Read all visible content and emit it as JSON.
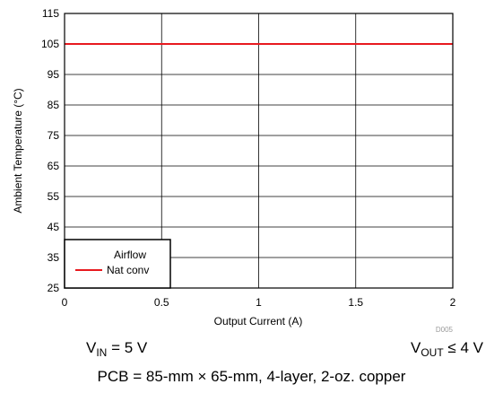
{
  "chart_data": {
    "type": "line",
    "xlabel": "Output Current (A)",
    "ylabel": "Ambient Temperature (°C)",
    "xlim": [
      0,
      2
    ],
    "ylim": [
      25,
      115
    ],
    "xticks": [
      0,
      0.5,
      1,
      1.5,
      2
    ],
    "xtick_labels": [
      "0",
      "0.5",
      "1",
      "1.5",
      "2"
    ],
    "yticks": [
      25,
      35,
      45,
      55,
      65,
      75,
      85,
      95,
      105,
      115
    ],
    "ytick_labels": [
      "25",
      "35",
      "45",
      "55",
      "65",
      "75",
      "85",
      "95",
      "105",
      "115"
    ],
    "grid": true,
    "legend_title": "Airflow",
    "legend_position": "bottom-left",
    "series": [
      {
        "name": "Nat conv",
        "color": "#e8191f",
        "x": [
          0,
          0.5,
          1,
          1.5,
          2
        ],
        "y": [
          105,
          105,
          105,
          105,
          105
        ]
      }
    ],
    "annotation": "D005"
  },
  "footer": {
    "vin_prefix": "V",
    "vin_sub": "IN",
    "vin_suffix": " = 5 V",
    "vout_prefix": "V",
    "vout_sub": "OUT",
    "vout_suffix": " ≤ 4 V",
    "pcb": "PCB = 85-mm × 65-mm, 4-layer, 2-oz. copper"
  }
}
